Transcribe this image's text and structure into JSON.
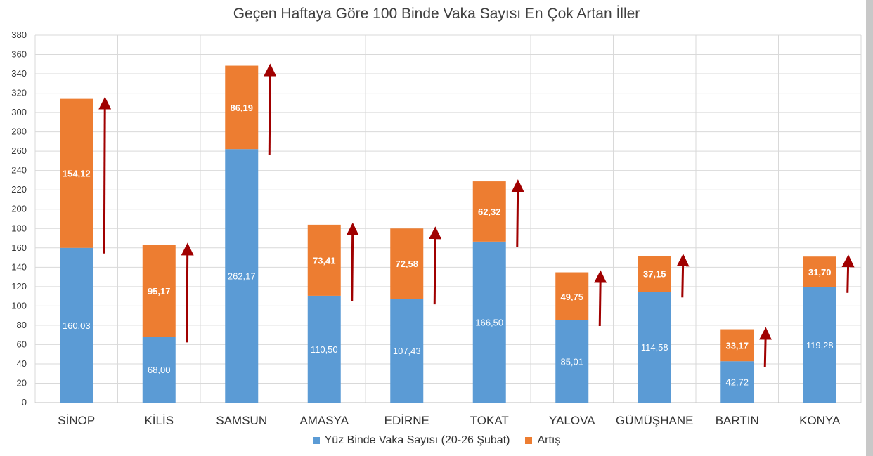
{
  "chart_data": {
    "type": "bar",
    "stacked": true,
    "title": "Geçen Haftaya Göre 100 Binde Vaka Sayısı En Çok Artan İller",
    "categories": [
      "SİNOP",
      "KİLİS",
      "SAMSUN",
      "AMASYA",
      "EDİRNE",
      "TOKAT",
      "YALOVA",
      "GÜMÜŞHANE",
      "BARTIN",
      "KONYA"
    ],
    "series": [
      {
        "name": "Yüz Binde Vaka Sayısı (20-26 Şubat)",
        "color": "#5b9bd5",
        "values": [
          160.03,
          68.0,
          262.17,
          110.5,
          107.43,
          166.5,
          85.01,
          114.58,
          42.72,
          119.28
        ],
        "labels": [
          "160,03",
          "68,00",
          "262,17",
          "110,50",
          "107,43",
          "166,50",
          "85,01",
          "114,58",
          "42,72",
          "119,28"
        ]
      },
      {
        "name": "Artış",
        "color": "#ed7d31",
        "values": [
          154.12,
          95.17,
          86.19,
          73.41,
          72.58,
          62.32,
          49.75,
          37.15,
          33.17,
          31.7
        ],
        "labels": [
          "154,12",
          "95,17",
          "86,19",
          "73,41",
          "72,58",
          "62,32",
          "49,75",
          "37,15",
          "33,17",
          "31,70"
        ]
      }
    ],
    "ylim": [
      0,
      380
    ],
    "yticks": [
      0,
      20,
      40,
      60,
      80,
      100,
      120,
      140,
      160,
      180,
      200,
      220,
      240,
      260,
      280,
      300,
      320,
      340,
      360,
      380
    ],
    "grid": true,
    "legend_position": "bottom",
    "arrow_color": "#a00000",
    "gridline_color": "#d9d9d9"
  }
}
